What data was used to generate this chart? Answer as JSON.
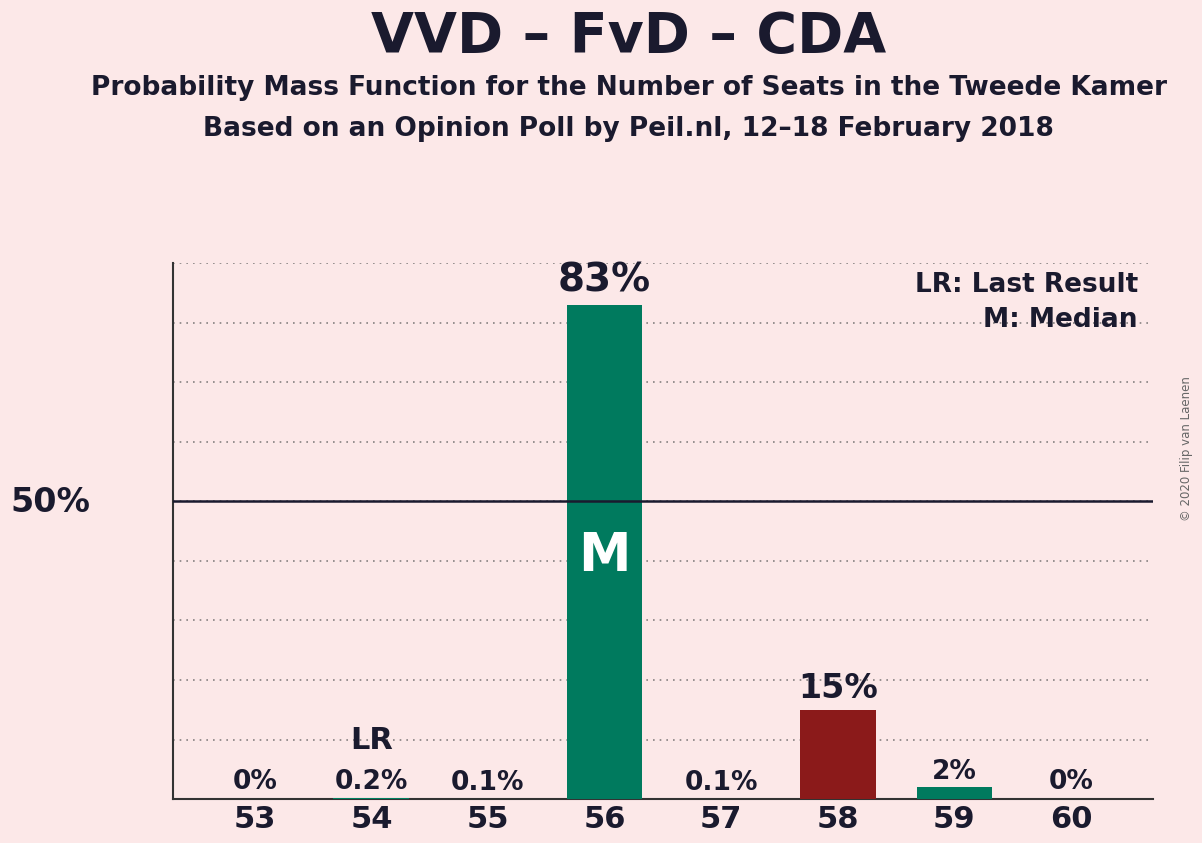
{
  "title": "VVD – FvD – CDA",
  "subtitle1": "Probability Mass Function for the Number of Seats in the Tweede Kamer",
  "subtitle2": "Based on an Opinion Poll by Peil.nl, 12–18 February 2018",
  "copyright": "© 2020 Filip van Laenen",
  "categories": [
    53,
    54,
    55,
    56,
    57,
    58,
    59,
    60
  ],
  "values": [
    0.0,
    0.2,
    0.1,
    83.0,
    0.1,
    15.0,
    2.0,
    0.0
  ],
  "bar_colors": [
    "#008060",
    "#008060",
    "#008060",
    "#007a5e",
    "#008060",
    "#8b1a1a",
    "#007a5e",
    "#008060"
  ],
  "label_values": [
    "0%",
    "0.2%",
    "0.1%",
    "83%",
    "0.1%",
    "15%",
    "2%",
    "0%"
  ],
  "median_seat": 56,
  "lr_seat": 54,
  "median_label": "M",
  "lr_label": "LR",
  "legend_lr": "LR: Last Result",
  "legend_m": "M: Median",
  "ylim": [
    0,
    90
  ],
  "yticks": [
    0,
    10,
    20,
    30,
    40,
    50,
    60,
    70,
    80,
    90
  ],
  "background_color": "#fce8e8",
  "bar_width": 0.65,
  "grid_color": "#555555",
  "title_fontsize": 40,
  "subtitle_fontsize": 19,
  "tick_fontsize": 22,
  "label_fontsize": 19,
  "legend_fontsize": 19,
  "ylabel_50_fontsize": 24,
  "median_label_fontsize": 38,
  "lr_label_fontsize": 22,
  "big_label_fontsize": 24
}
